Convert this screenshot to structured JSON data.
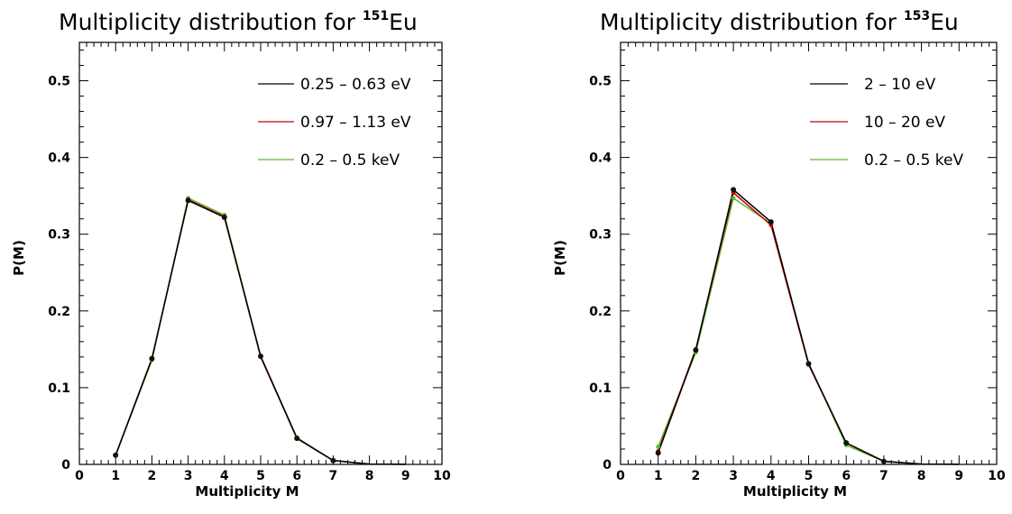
{
  "chart_data": [
    {
      "type": "line",
      "title": "Multiplicity distribution for ",
      "title_superscript": "151",
      "title_suffix": "Eu",
      "xlabel": "Multiplicity M",
      "ylabel": "P(M)",
      "xlim": [
        0,
        10
      ],
      "ylim": [
        0,
        0.55
      ],
      "xticks": [
        "0",
        "1",
        "2",
        "3",
        "4",
        "5",
        "6",
        "7",
        "8",
        "9",
        "10"
      ],
      "yticks": [
        "0",
        "0.1",
        "0.2",
        "0.3",
        "0.4",
        "0.5"
      ],
      "legend_position": "top-right",
      "x": [
        1,
        2,
        3,
        4,
        5,
        6,
        7,
        8,
        9
      ],
      "series": [
        {
          "name": "0.25 – 0.63 eV",
          "color": "#000000",
          "values": [
            0.012,
            0.138,
            0.344,
            0.322,
            0.141,
            0.034,
            0.005,
            0.0005,
            0.0001
          ]
        },
        {
          "name": "0.97 – 1.13 eV",
          "color": "#cc0000",
          "values": [
            0.012,
            0.137,
            0.345,
            0.323,
            0.14,
            0.034,
            0.005,
            0.0005,
            0.0001
          ]
        },
        {
          "name": "0.2 – 0.5 keV",
          "color": "#55bb33",
          "values": [
            0.012,
            0.136,
            0.347,
            0.325,
            0.141,
            0.035,
            0.005,
            0.0005,
            0.0001
          ]
        }
      ]
    },
    {
      "type": "line",
      "title": "Multiplicity distribution for ",
      "title_superscript": "153",
      "title_suffix": "Eu",
      "xlabel": "Multiplicity M",
      "ylabel": "P(M)",
      "xlim": [
        0,
        10
      ],
      "ylim": [
        0,
        0.55
      ],
      "xticks": [
        "0",
        "1",
        "2",
        "3",
        "4",
        "5",
        "6",
        "7",
        "8",
        "9",
        "10"
      ],
      "yticks": [
        "0",
        "0.1",
        "0.2",
        "0.3",
        "0.4",
        "0.5"
      ],
      "legend_position": "top-right",
      "x": [
        1,
        2,
        3,
        4,
        5,
        6,
        7,
        8,
        9
      ],
      "series": [
        {
          "name": "2 – 10 eV",
          "color": "#000000",
          "values": [
            0.015,
            0.149,
            0.358,
            0.316,
            0.131,
            0.028,
            0.004,
            0.0005,
            0.0001
          ]
        },
        {
          "name": "10 – 20 eV",
          "color": "#cc0000",
          "values": [
            0.017,
            0.15,
            0.354,
            0.312,
            0.13,
            0.028,
            0.004,
            0.0005,
            0.0001
          ]
        },
        {
          "name": "0.2 – 0.5 keV",
          "color": "#55bb33",
          "values": [
            0.023,
            0.146,
            0.347,
            0.314,
            0.132,
            0.025,
            0.004,
            0.0005,
            0.0001
          ]
        }
      ]
    }
  ]
}
